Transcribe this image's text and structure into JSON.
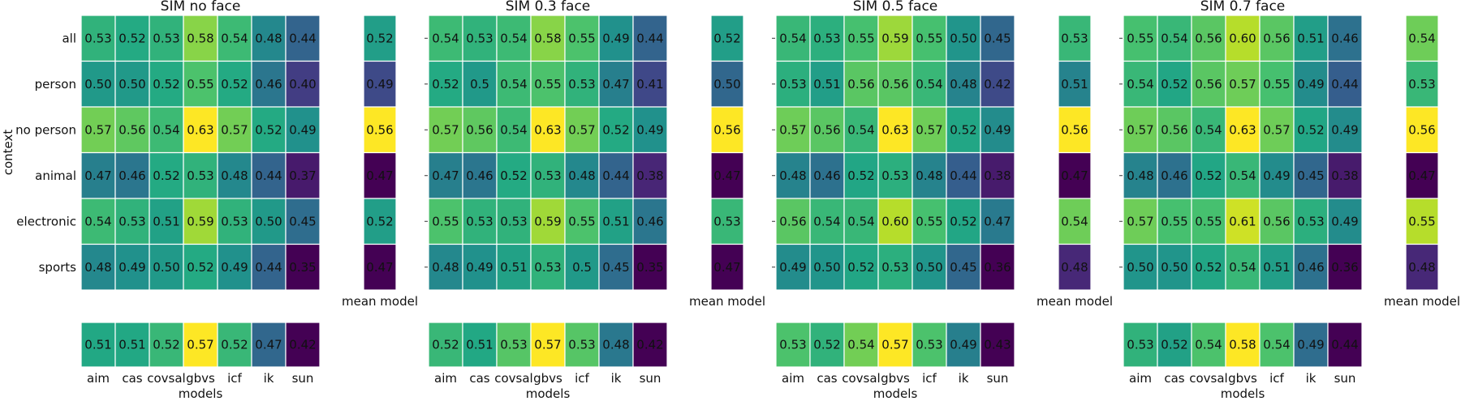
{
  "chart_data": {
    "type": "heatmap",
    "ylabel": "context",
    "xlabel": "models",
    "rows": [
      "all",
      "person",
      "no person",
      "animal",
      "electronic",
      "sports"
    ],
    "models": [
      "aim",
      "cas",
      "covsal",
      "gbvs",
      "icf",
      "ik",
      "sun"
    ],
    "mean_column_label": "mean model",
    "colormap": "viridis",
    "panels": [
      {
        "title": "SIM no face",
        "values": [
          [
            "0.53",
            "0.52",
            "0.53",
            "0.58",
            "0.54",
            "0.48",
            "0.44"
          ],
          [
            "0.50",
            "0.50",
            "0.52",
            "0.55",
            "0.52",
            "0.46",
            "0.40"
          ],
          [
            "0.57",
            "0.56",
            "0.54",
            "0.63",
            "0.57",
            "0.52",
            "0.49"
          ],
          [
            "0.47",
            "0.46",
            "0.52",
            "0.53",
            "0.48",
            "0.44",
            "0.37"
          ],
          [
            "0.54",
            "0.53",
            "0.51",
            "0.59",
            "0.53",
            "0.50",
            "0.45"
          ],
          [
            "0.48",
            "0.49",
            "0.50",
            "0.52",
            "0.49",
            "0.44",
            "0.35"
          ]
        ],
        "row_means": [
          "0.52",
          "0.49",
          "0.56",
          "0.47",
          "0.52",
          "0.47"
        ],
        "col_means": [
          "0.51",
          "0.51",
          "0.52",
          "0.57",
          "0.52",
          "0.47",
          "0.42"
        ]
      },
      {
        "title": "SIM 0.3 face",
        "values": [
          [
            "0.54",
            "0.53",
            "0.54",
            "0.58",
            "0.55",
            "0.49",
            "0.44"
          ],
          [
            "0.52",
            "0.5",
            "0.54",
            "0.55",
            "0.53",
            "0.47",
            "0.41"
          ],
          [
            "0.57",
            "0.56",
            "0.54",
            "0.63",
            "0.57",
            "0.52",
            "0.49"
          ],
          [
            "0.47",
            "0.46",
            "0.52",
            "0.53",
            "0.48",
            "0.44",
            "0.38"
          ],
          [
            "0.55",
            "0.53",
            "0.53",
            "0.59",
            "0.55",
            "0.51",
            "0.46"
          ],
          [
            "0.48",
            "0.49",
            "0.51",
            "0.53",
            "0.5",
            "0.45",
            "0.35"
          ]
        ],
        "row_means": [
          "0.52",
          "0.50",
          "0.56",
          "0.47",
          "0.53",
          "0.47"
        ],
        "col_means": [
          "0.52",
          "0.51",
          "0.53",
          "0.57",
          "0.53",
          "0.48",
          "0.42"
        ]
      },
      {
        "title": "SIM 0.5 face",
        "values": [
          [
            "0.54",
            "0.53",
            "0.55",
            "0.59",
            "0.55",
            "0.50",
            "0.45"
          ],
          [
            "0.53",
            "0.51",
            "0.56",
            "0.56",
            "0.54",
            "0.48",
            "0.42"
          ],
          [
            "0.57",
            "0.56",
            "0.54",
            "0.63",
            "0.57",
            "0.52",
            "0.49"
          ],
          [
            "0.48",
            "0.46",
            "0.52",
            "0.53",
            "0.48",
            "0.44",
            "0.38"
          ],
          [
            "0.56",
            "0.54",
            "0.54",
            "0.60",
            "0.55",
            "0.52",
            "0.47"
          ],
          [
            "0.49",
            "0.50",
            "0.52",
            "0.53",
            "0.50",
            "0.45",
            "0.36"
          ]
        ],
        "row_means": [
          "0.53",
          "0.51",
          "0.56",
          "0.47",
          "0.54",
          "0.48"
        ],
        "col_means": [
          "0.53",
          "0.52",
          "0.54",
          "0.57",
          "0.53",
          "0.49",
          "0.43"
        ]
      },
      {
        "title": "SIM 0.7 face",
        "values": [
          [
            "0.55",
            "0.54",
            "0.56",
            "0.60",
            "0.56",
            "0.51",
            "0.46"
          ],
          [
            "0.54",
            "0.52",
            "0.56",
            "0.57",
            "0.55",
            "0.49",
            "0.44"
          ],
          [
            "0.57",
            "0.56",
            "0.54",
            "0.63",
            "0.57",
            "0.52",
            "0.49"
          ],
          [
            "0.48",
            "0.46",
            "0.52",
            "0.54",
            "0.49",
            "0.45",
            "0.38"
          ],
          [
            "0.57",
            "0.55",
            "0.55",
            "0.61",
            "0.56",
            "0.53",
            "0.49"
          ],
          [
            "0.50",
            "0.50",
            "0.52",
            "0.54",
            "0.51",
            "0.46",
            "0.36"
          ]
        ],
        "row_means": [
          "0.54",
          "0.53",
          "0.56",
          "0.47",
          "0.55",
          "0.48"
        ],
        "col_means": [
          "0.53",
          "0.52",
          "0.54",
          "0.58",
          "0.54",
          "0.49",
          "0.44"
        ]
      }
    ]
  }
}
